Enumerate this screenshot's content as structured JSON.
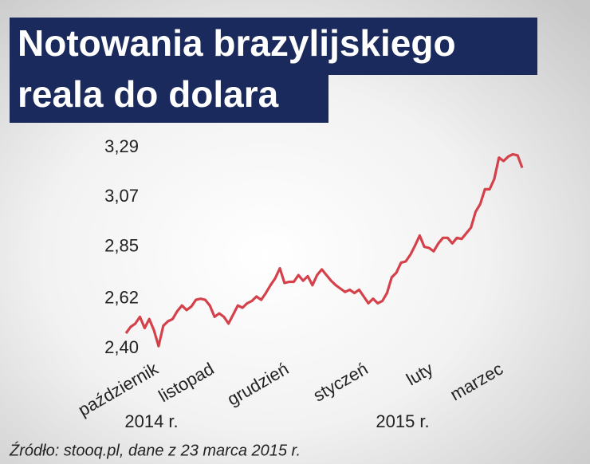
{
  "chart_data": {
    "type": "line",
    "title_lines": [
      "Notowania brazylijskiego",
      "reala do dolara"
    ],
    "source": "Źródło: stooq.pl, dane z 23 marca 2015 r.",
    "year_labels": [
      "2014 r.",
      "2015 r."
    ],
    "color": "#d5414a",
    "grid": false,
    "ylim": [
      2.4,
      3.29
    ],
    "yticks": [
      {
        "value": 2.4,
        "label": "2,40"
      },
      {
        "value": 2.62,
        "label": "2,62"
      },
      {
        "value": 2.85,
        "label": "2,85"
      },
      {
        "value": 3.07,
        "label": "3,07"
      },
      {
        "value": 3.29,
        "label": "3,29"
      }
    ],
    "categories": [
      null,
      null,
      null,
      null,
      null,
      null,
      "październik",
      null,
      null,
      null,
      null,
      null,
      null,
      null,
      null,
      null,
      null,
      null,
      "listopad",
      null,
      null,
      null,
      null,
      null,
      null,
      null,
      null,
      null,
      null,
      null,
      null,
      null,
      null,
      null,
      "grudzień",
      null,
      null,
      null,
      null,
      null,
      null,
      null,
      null,
      null,
      null,
      null,
      null,
      null,
      null,
      null,
      null,
      "styczeń",
      null,
      null,
      null,
      null,
      null,
      null,
      null,
      null,
      null,
      null,
      null,
      null,
      null,
      "luty",
      null,
      null,
      null,
      null,
      null,
      null,
      null,
      null,
      null,
      null,
      null,
      null,
      null,
      null,
      "marzec",
      null,
      null,
      null,
      null,
      null
    ],
    "values": [
      2.467,
      2.495,
      2.51,
      2.54,
      2.49,
      2.53,
      2.48,
      2.41,
      2.5,
      2.52,
      2.53,
      2.565,
      2.59,
      2.57,
      2.585,
      2.615,
      2.62,
      2.615,
      2.59,
      2.54,
      2.555,
      2.54,
      2.51,
      2.55,
      2.59,
      2.58,
      2.6,
      2.61,
      2.63,
      2.615,
      2.645,
      2.68,
      2.71,
      2.755,
      2.69,
      2.695,
      2.695,
      2.725,
      2.7,
      2.72,
      2.68,
      2.725,
      2.75,
      2.725,
      2.7,
      2.68,
      2.665,
      2.65,
      2.66,
      2.645,
      2.66,
      2.63,
      2.6,
      2.62,
      2.6,
      2.61,
      2.645,
      2.715,
      2.735,
      2.78,
      2.785,
      2.815,
      2.855,
      2.9,
      2.85,
      2.845,
      2.83,
      2.865,
      2.89,
      2.89,
      2.865,
      2.89,
      2.885,
      2.91,
      2.935,
      3.005,
      3.04,
      3.105,
      3.105,
      3.15,
      3.245,
      3.23,
      3.25,
      3.26,
      3.255,
      3.2
    ]
  }
}
